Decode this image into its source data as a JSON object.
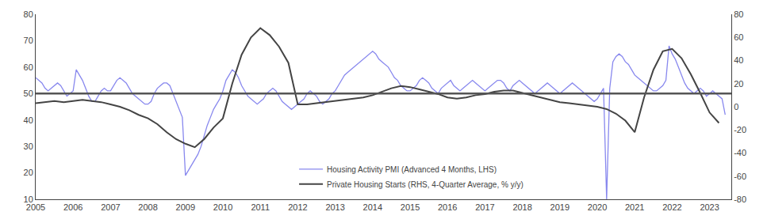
{
  "chart_data": {
    "type": "line",
    "xlim": [
      2005.0,
      2023.58
    ],
    "xticks": [
      2005,
      2006,
      2007,
      2008,
      2009,
      2010,
      2011,
      2012,
      2013,
      2014,
      2015,
      2016,
      2017,
      2018,
      2019,
      2020,
      2021,
      2022,
      2023
    ],
    "ylim": [
      10,
      80
    ],
    "yticks": [
      10,
      20,
      30,
      40,
      50,
      60,
      70,
      80
    ],
    "y2lim": [
      -80,
      80
    ],
    "y2ticks": [
      -80,
      -60,
      -40,
      -20,
      0,
      20,
      40,
      60,
      80
    ],
    "grid": false,
    "legend": "lower center",
    "reference_line": {
      "value": 50,
      "color": "#555555"
    },
    "series": [
      {
        "name": "Housing Activity PMI (Advanced 4 Months, LHS)",
        "color": "#8888ee",
        "x": [
          2005.0,
          2005.083,
          2005.167,
          2005.25,
          2005.333,
          2005.417,
          2005.5,
          2005.583,
          2005.667,
          2005.75,
          2005.833,
          2005.917,
          2006.0,
          2006.083,
          2006.167,
          2006.25,
          2006.333,
          2006.417,
          2006.5,
          2006.583,
          2006.667,
          2006.75,
          2006.833,
          2006.917,
          2007.0,
          2007.083,
          2007.167,
          2007.25,
          2007.333,
          2007.417,
          2007.5,
          2007.583,
          2007.667,
          2007.75,
          2007.833,
          2007.917,
          2008.0,
          2008.083,
          2008.167,
          2008.25,
          2008.333,
          2008.417,
          2008.5,
          2008.583,
          2008.667,
          2008.75,
          2008.833,
          2008.917,
          2009.0,
          2009.083,
          2009.167,
          2009.25,
          2009.333,
          2009.417,
          2009.5,
          2009.583,
          2009.667,
          2009.75,
          2009.833,
          2009.917,
          2010.0,
          2010.083,
          2010.167,
          2010.25,
          2010.333,
          2010.417,
          2010.5,
          2010.583,
          2010.667,
          2010.75,
          2010.833,
          2010.917,
          2011.0,
          2011.083,
          2011.167,
          2011.25,
          2011.333,
          2011.417,
          2011.5,
          2011.583,
          2011.667,
          2011.75,
          2011.833,
          2011.917,
          2012.0,
          2012.083,
          2012.167,
          2012.25,
          2012.333,
          2012.417,
          2012.5,
          2012.583,
          2012.667,
          2012.75,
          2012.833,
          2012.917,
          2013.0,
          2013.083,
          2013.167,
          2013.25,
          2013.333,
          2013.417,
          2013.5,
          2013.583,
          2013.667,
          2013.75,
          2013.833,
          2013.917,
          2014.0,
          2014.083,
          2014.167,
          2014.25,
          2014.333,
          2014.417,
          2014.5,
          2014.583,
          2014.667,
          2014.75,
          2014.833,
          2014.917,
          2015.0,
          2015.083,
          2015.167,
          2015.25,
          2015.333,
          2015.417,
          2015.5,
          2015.583,
          2015.667,
          2015.75,
          2015.833,
          2015.917,
          2016.0,
          2016.083,
          2016.167,
          2016.25,
          2016.333,
          2016.417,
          2016.5,
          2016.583,
          2016.667,
          2016.75,
          2016.833,
          2016.917,
          2017.0,
          2017.083,
          2017.167,
          2017.25,
          2017.333,
          2017.417,
          2017.5,
          2017.583,
          2017.667,
          2017.75,
          2017.833,
          2017.917,
          2018.0,
          2018.083,
          2018.167,
          2018.25,
          2018.333,
          2018.417,
          2018.5,
          2018.583,
          2018.667,
          2018.75,
          2018.833,
          2018.917,
          2019.0,
          2019.083,
          2019.167,
          2019.25,
          2019.333,
          2019.417,
          2019.5,
          2019.583,
          2019.667,
          2019.75,
          2019.833,
          2019.917,
          2020.0,
          2020.083,
          2020.167,
          2020.25,
          2020.333,
          2020.417,
          2020.5,
          2020.583,
          2020.667,
          2020.75,
          2020.833,
          2020.917,
          2021.0,
          2021.083,
          2021.167,
          2021.25,
          2021.333,
          2021.417,
          2021.5,
          2021.583,
          2021.667,
          2021.75,
          2021.833,
          2021.917,
          2022.0,
          2022.083,
          2022.167,
          2022.25,
          2022.333,
          2022.417,
          2022.5,
          2022.583,
          2022.667,
          2022.75,
          2022.833,
          2022.917,
          2023.0,
          2023.083,
          2023.167,
          2023.25,
          2023.333,
          2023.417
        ],
        "values": [
          56,
          55,
          54,
          52,
          51,
          52,
          53,
          54,
          53,
          51,
          49,
          50,
          51,
          59,
          57,
          55,
          52,
          49,
          47,
          47,
          49,
          51,
          52,
          51,
          51,
          53,
          55,
          56,
          55,
          54,
          52,
          50,
          49,
          48,
          47,
          46,
          46,
          47,
          50,
          52,
          53,
          54,
          54,
          53,
          50,
          47,
          44,
          41,
          19,
          21,
          23,
          25,
          27,
          30,
          34,
          38,
          41,
          44,
          46,
          48,
          51,
          55,
          57,
          59,
          58,
          56,
          53,
          51,
          49,
          48,
          47,
          46,
          47,
          48,
          50,
          51,
          52,
          51,
          49,
          47,
          46,
          45,
          44,
          45,
          46,
          47,
          48,
          50,
          51,
          50,
          49,
          47,
          46,
          47,
          48,
          50,
          51,
          53,
          55,
          57,
          58,
          59,
          60,
          61,
          62,
          63,
          64,
          65,
          66,
          65,
          63,
          62,
          61,
          60,
          58,
          56,
          55,
          53,
          52,
          51,
          51,
          52,
          53,
          55,
          56,
          55,
          54,
          52,
          51,
          50,
          52,
          53,
          54,
          55,
          53,
          52,
          51,
          52,
          53,
          54,
          55,
          54,
          53,
          52,
          51,
          52,
          53,
          54,
          55,
          55,
          54,
          52,
          51,
          53,
          54,
          55,
          54,
          53,
          52,
          51,
          50,
          51,
          52,
          53,
          54,
          53,
          52,
          51,
          50,
          51,
          52,
          53,
          54,
          53,
          52,
          51,
          50,
          49,
          48,
          47,
          48,
          50,
          52,
          10,
          52,
          62,
          64,
          65,
          64,
          62,
          61,
          59,
          57,
          56,
          55,
          54,
          53,
          52,
          51,
          51,
          52,
          53,
          55,
          68,
          65,
          63,
          60,
          57,
          54,
          52,
          51,
          50,
          51,
          52,
          51,
          49,
          50,
          51,
          50,
          49,
          48,
          42
        ]
      },
      {
        "name": "Private Housing Starts (RHS, 4-Quarter Average, % y/y)",
        "color": "#444444",
        "axis": "y2",
        "x": [
          2005.0,
          2005.25,
          2005.5,
          2005.75,
          2006.0,
          2006.25,
          2006.5,
          2006.75,
          2007.0,
          2007.25,
          2007.5,
          2007.75,
          2008.0,
          2008.25,
          2008.5,
          2008.75,
          2009.0,
          2009.25,
          2009.5,
          2009.75,
          2010.0,
          2010.25,
          2010.5,
          2010.75,
          2011.0,
          2011.25,
          2011.5,
          2011.75,
          2012.0,
          2012.25,
          2012.5,
          2012.75,
          2013.0,
          2013.25,
          2013.5,
          2013.75,
          2014.0,
          2014.25,
          2014.5,
          2014.75,
          2015.0,
          2015.25,
          2015.5,
          2015.75,
          2016.0,
          2016.25,
          2016.5,
          2016.75,
          2017.0,
          2017.25,
          2017.5,
          2017.75,
          2018.0,
          2018.25,
          2018.5,
          2018.75,
          2019.0,
          2019.25,
          2019.5,
          2019.75,
          2020.0,
          2020.25,
          2020.5,
          2020.75,
          2021.0,
          2021.25,
          2021.5,
          2021.75,
          2022.0,
          2022.25,
          2022.5,
          2022.75,
          2023.0,
          2023.25
        ],
        "values": [
          3,
          4,
          5,
          4,
          5,
          6,
          5,
          4,
          2,
          0,
          -3,
          -7,
          -10,
          -15,
          -22,
          -28,
          -32,
          -35,
          -28,
          -18,
          -10,
          20,
          45,
          60,
          68,
          62,
          52,
          38,
          2,
          2,
          3,
          4,
          5,
          6,
          7,
          8,
          10,
          13,
          16,
          18,
          17,
          15,
          13,
          11,
          8,
          7,
          8,
          10,
          11,
          13,
          14,
          14,
          12,
          10,
          8,
          6,
          4,
          3,
          2,
          1,
          0,
          -2,
          -6,
          -12,
          -22,
          8,
          32,
          48,
          50,
          42,
          28,
          12,
          -5,
          -14
        ]
      }
    ]
  }
}
